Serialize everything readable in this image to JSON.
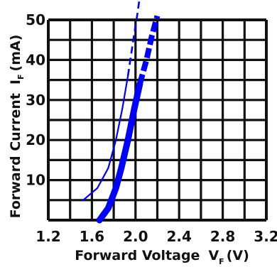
{
  "chart_data": {
    "type": "line",
    "title": "",
    "xlabel": "Forward Voltage",
    "xlabel_symbol": "V",
    "xlabel_subscript": "F",
    "xlabel_unit": "(V)",
    "ylabel": "Forward Current",
    "ylabel_symbol": "I",
    "ylabel_subscript": "F",
    "ylabel_unit": "(mA)",
    "xlim": [
      1.2,
      3.2
    ],
    "ylim": [
      0,
      50
    ],
    "x_tick_labels": [
      "1.2",
      "1.6",
      "2.0",
      "2.4",
      "2.8",
      "3.2"
    ],
    "y_tick_labels": [
      "10",
      "20",
      "30",
      "40",
      "50"
    ],
    "grid": true,
    "line_color": "#0000ff",
    "grid_color": "#111111",
    "series": [
      {
        "style": "thin",
        "points": [
          [
            1.52,
            5
          ],
          [
            1.65,
            8
          ],
          [
            1.75,
            13
          ],
          [
            1.82,
            20
          ],
          [
            1.88,
            28
          ],
          [
            1.93,
            36
          ]
        ],
        "dashed_points": [
          [
            1.93,
            36
          ],
          [
            1.98,
            45
          ],
          [
            2.02,
            52
          ],
          [
            2.06,
            60
          ]
        ]
      },
      {
        "style": "thick",
        "points": [
          [
            1.67,
            0
          ],
          [
            1.75,
            3
          ],
          [
            1.82,
            8
          ],
          [
            1.87,
            13
          ],
          [
            1.93,
            20
          ],
          [
            1.99,
            28
          ],
          [
            2.04,
            34
          ]
        ],
        "dashed_points": [
          [
            2.04,
            34
          ],
          [
            2.1,
            40
          ],
          [
            2.15,
            46
          ],
          [
            2.2,
            51
          ]
        ]
      }
    ]
  }
}
